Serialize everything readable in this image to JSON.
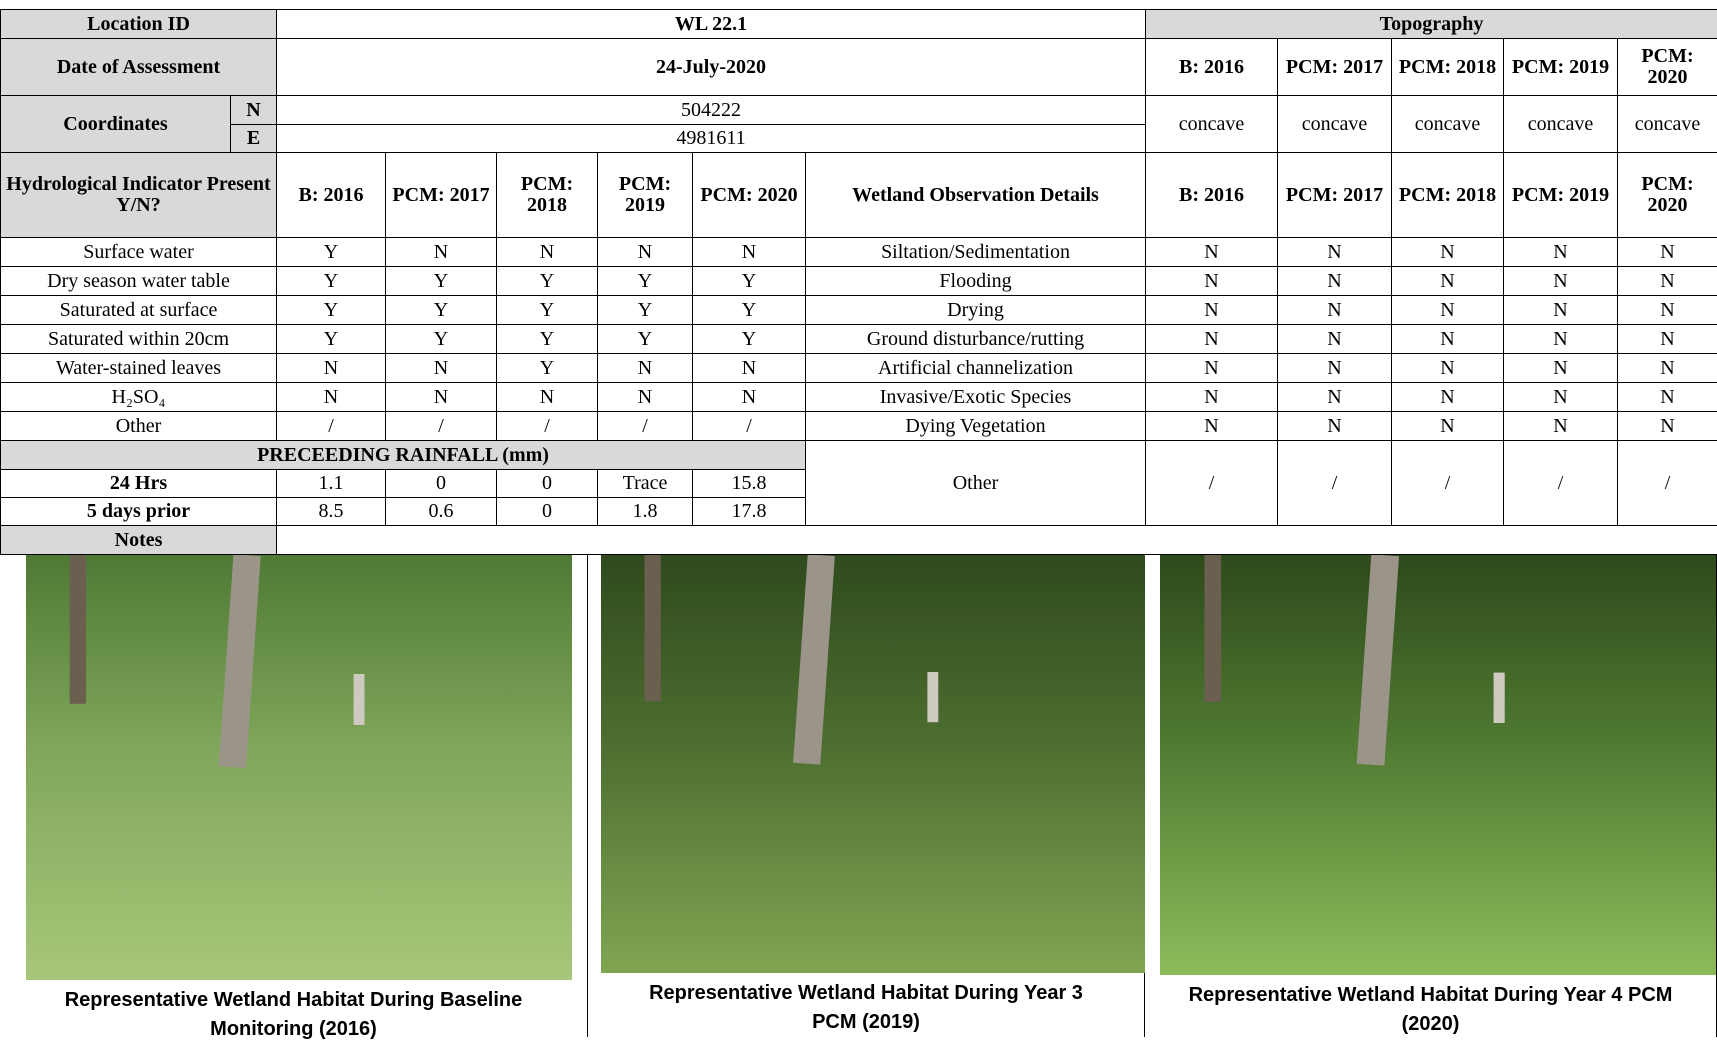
{
  "location_label": "Location ID",
  "location": "WL 22.1",
  "topography_label": "Topography",
  "date_label": "Date of Assessment",
  "date": "24-July-2020",
  "years": [
    "B: 2016",
    "PCM: 2017",
    "PCM: 2018",
    "PCM: 2019",
    "PCM: 2020"
  ],
  "coordinates_label": "Coordinates",
  "n_label": "N",
  "n_value": "504222",
  "e_label": "E",
  "e_value": "4981611",
  "topography": [
    "concave",
    "concave",
    "concave",
    "concave",
    "concave"
  ],
  "hydro_label": "Hydrological Indicator Present Y/N?",
  "observation_label": "Wetland Observation Details",
  "hydro_rows": [
    {
      "label": "Surface water",
      "values": [
        "Y",
        "N",
        "N",
        "N",
        "N"
      ]
    },
    {
      "label": "Dry season water table",
      "values": [
        "Y",
        "Y",
        "Y",
        "Y",
        "Y"
      ]
    },
    {
      "label": "Saturated at surface",
      "values": [
        "Y",
        "Y",
        "Y",
        "Y",
        "Y"
      ]
    },
    {
      "label": "Saturated within 20cm",
      "values": [
        "Y",
        "Y",
        "Y",
        "Y",
        "Y"
      ]
    },
    {
      "label": "Water-stained leaves",
      "values": [
        "N",
        "N",
        "Y",
        "N",
        "N"
      ]
    },
    {
      "label": "H₂SO₄",
      "values": [
        "N",
        "N",
        "N",
        "N",
        "N"
      ]
    },
    {
      "label": "Other",
      "values": [
        "/",
        "/",
        "/",
        "/",
        "/"
      ]
    }
  ],
  "observation_rows": [
    {
      "label": "Siltation/Sedimentation",
      "values": [
        "N",
        "N",
        "N",
        "N",
        "N"
      ]
    },
    {
      "label": "Flooding",
      "values": [
        "N",
        "N",
        "N",
        "N",
        "N"
      ]
    },
    {
      "label": "Drying",
      "values": [
        "N",
        "N",
        "N",
        "N",
        "N"
      ]
    },
    {
      "label": "Ground disturbance/rutting",
      "values": [
        "N",
        "N",
        "N",
        "N",
        "N"
      ]
    },
    {
      "label": "Artificial channelization",
      "values": [
        "N",
        "N",
        "N",
        "N",
        "N"
      ]
    },
    {
      "label": "Invasive/Exotic Species",
      "values": [
        "N",
        "N",
        "N",
        "N",
        "N"
      ]
    },
    {
      "label": "Dying Vegetation",
      "values": [
        "N",
        "N",
        "N",
        "N",
        "N"
      ]
    }
  ],
  "rainfall_label": "PRECEEDING RAINFALL (mm)",
  "rainfall_rows": [
    {
      "label": "24 Hrs",
      "values": [
        "1.1",
        "0",
        "0",
        "Trace",
        "15.8"
      ]
    },
    {
      "label": "5 days prior",
      "values": [
        "8.5",
        "0.6",
        "0",
        "1.8",
        "17.8"
      ]
    }
  ],
  "observation_other": {
    "label": "Other",
    "values": [
      "/",
      "/",
      "/",
      "/",
      "/"
    ]
  },
  "notes_label": "Notes",
  "photos": [
    {
      "caption": "Representative Wetland Habitat During Baseline Monitoring (2016)"
    },
    {
      "caption": "Representative Wetland Habitat During Year 3 PCM (2019)"
    },
    {
      "caption": "Representative Wetland Habitat During Year 4 PCM (2020)"
    }
  ]
}
